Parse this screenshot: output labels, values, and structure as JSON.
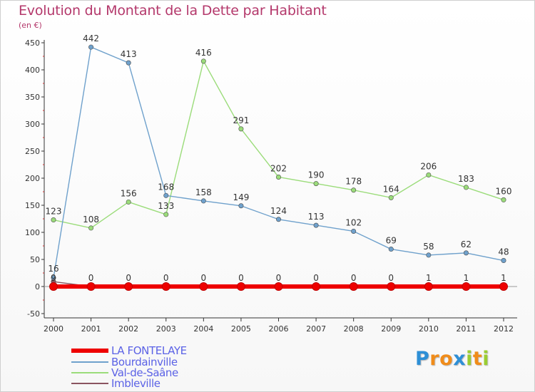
{
  "chart": {
    "title": "Evolution du Montant de la Dette par Habitant",
    "subtitle": "(en €)"
  },
  "chart_data": {
    "type": "line",
    "title": "Evolution du Montant de la Dette par Habitant",
    "subtitle": "(en €)",
    "x": [
      "2000",
      "2001",
      "2002",
      "2003",
      "2004",
      "2005",
      "2006",
      "2007",
      "2008",
      "2009",
      "2010",
      "2011",
      "2012"
    ],
    "ylim": [
      -50,
      450
    ],
    "yticks": [
      -50,
      0,
      50,
      100,
      150,
      200,
      250,
      300,
      350,
      400,
      450
    ],
    "grid": false,
    "legend_position": "bottom-left",
    "series": [
      {
        "name": "LA FONTELAYE",
        "color": "#ee0000",
        "values": [
          0,
          0,
          0,
          0,
          0,
          0,
          0,
          0,
          0,
          0,
          0,
          0,
          0
        ],
        "labels": [],
        "style": "thick"
      },
      {
        "name": "Bourdainville",
        "color": "#6fa1cc",
        "values": [
          16,
          442,
          413,
          168,
          158,
          149,
          124,
          113,
          102,
          69,
          58,
          62,
          48
        ],
        "labels": [
          16,
          442,
          413,
          168,
          158,
          149,
          124,
          113,
          102,
          69,
          58,
          62,
          48
        ]
      },
      {
        "name": "Val-de-Saâne",
        "color": "#9bdc7a",
        "values": [
          123,
          108,
          156,
          133,
          416,
          291,
          202,
          190,
          178,
          164,
          206,
          183,
          160
        ],
        "labels": [
          123,
          108,
          156,
          133,
          416,
          291,
          202,
          190,
          178,
          164,
          206,
          183,
          160
        ]
      },
      {
        "name": "Imbleville",
        "color": "#8a5460",
        "values": [
          9,
          0,
          0,
          0,
          0,
          0,
          0,
          0,
          0,
          0,
          1,
          1,
          1
        ],
        "labels": [
          9,
          0,
          0,
          0,
          0,
          0,
          0,
          0,
          0,
          0,
          1,
          1,
          1
        ]
      }
    ]
  },
  "legend": [
    {
      "label": "LA FONTELAYE",
      "color": "#ee0000"
    },
    {
      "label": "Bourdainville",
      "color": "#6fa1cc"
    },
    {
      "label": "Val-de-Saâne",
      "color": "#9bdc7a"
    },
    {
      "label": "Imbleville",
      "color": "#8a5460"
    }
  ],
  "brand": {
    "letters": [
      "P",
      "r",
      "o",
      "x",
      "i",
      "t",
      "i"
    ],
    "colors": [
      "#2e8fd6",
      "#f08c1a",
      "#f08c1a",
      "#2e8fd6",
      "#9acd32",
      "#f08c1a",
      "#9acd32"
    ]
  }
}
